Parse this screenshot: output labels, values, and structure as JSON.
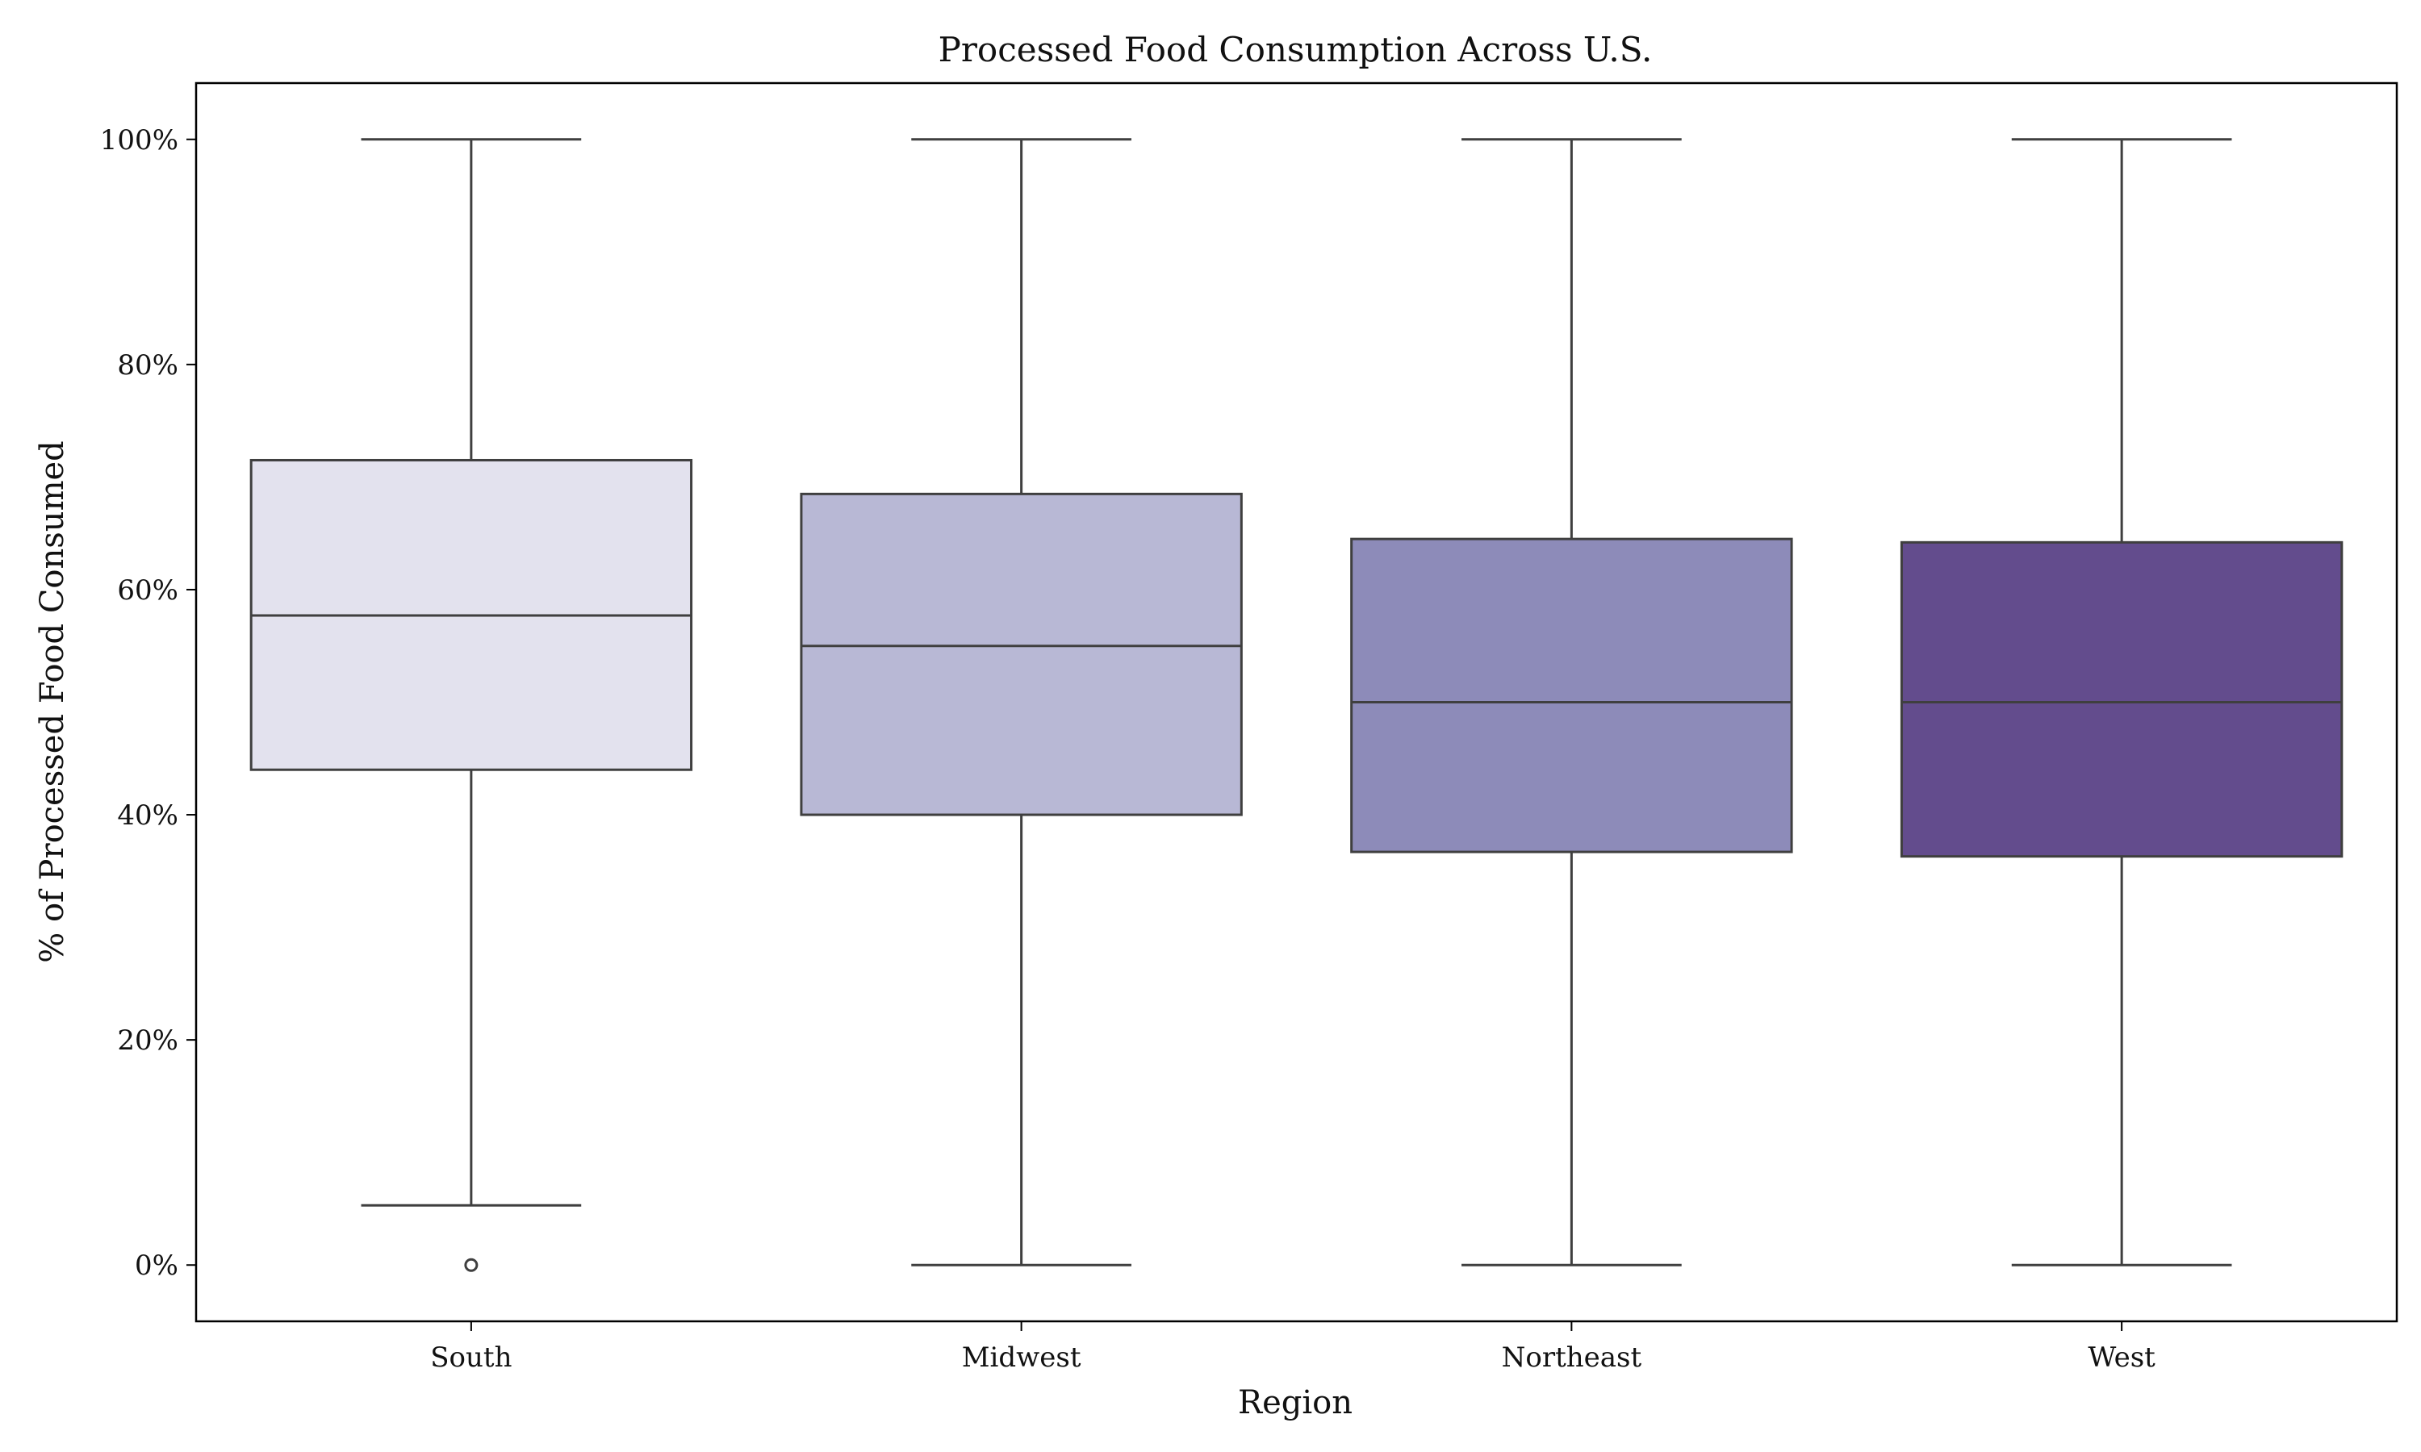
{
  "chart_data": {
    "type": "box",
    "title": "Processed Food Consumption Across U.S.",
    "xlabel": "Region",
    "ylabel": "% of Processed Food Consumed",
    "ylim": [
      -5,
      105
    ],
    "yticks": [
      {
        "value": 0,
        "label": "0%"
      },
      {
        "value": 20,
        "label": "20%"
      },
      {
        "value": 40,
        "label": "40%"
      },
      {
        "value": 60,
        "label": "60%"
      },
      {
        "value": 80,
        "label": "80%"
      },
      {
        "value": 100,
        "label": "100%"
      }
    ],
    "categories": [
      "South",
      "Midwest",
      "Northeast",
      "West"
    ],
    "boxes": [
      {
        "category": "South",
        "whisker_low": 5.3,
        "q1": 44.0,
        "median": 57.7,
        "q3": 71.5,
        "whisker_high": 100,
        "outliers": [
          0
        ],
        "color": "#e3e2ee"
      },
      {
        "category": "Midwest",
        "whisker_low": 0,
        "q1": 40.0,
        "median": 55.0,
        "q3": 68.5,
        "whisker_high": 100,
        "outliers": [],
        "color": "#b8b8d5"
      },
      {
        "category": "Northeast",
        "whisker_low": 0,
        "q1": 36.7,
        "median": 50.0,
        "q3": 64.5,
        "whisker_high": 100,
        "outliers": [],
        "color": "#8d8bb9"
      },
      {
        "category": "West",
        "whisker_low": 0,
        "q1": 36.3,
        "median": 50.0,
        "q3": 64.2,
        "whisker_high": 100,
        "outliers": [],
        "color": "#634c8d"
      }
    ],
    "grid": false,
    "legend": "none",
    "line_color": "#3f3f3f"
  }
}
